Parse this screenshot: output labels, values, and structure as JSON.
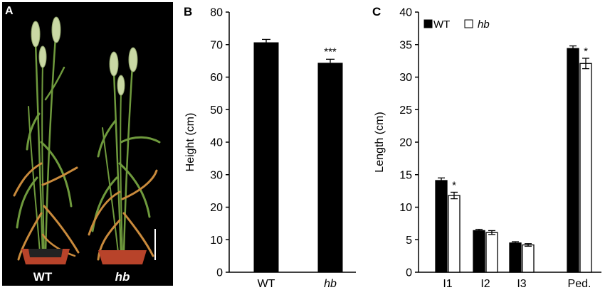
{
  "panels": {
    "a": {
      "letter": "A",
      "labels": [
        "WT",
        "hb"
      ],
      "colors": {
        "background": "#000000",
        "pot": "#b8432a",
        "stem": "#6f9a3d",
        "dry_leaf": "#c98a3c",
        "spike": "#c9d8a4"
      }
    },
    "b": {
      "letter": "B"
    },
    "c": {
      "letter": "C"
    }
  },
  "chart_data": [
    {
      "type": "bar",
      "panel": "B",
      "categories": [
        "WT",
        "hb"
      ],
      "values": [
        70.7,
        64.4
      ],
      "errors": [
        0.9,
        1.1
      ],
      "significance": [
        "",
        "***"
      ],
      "ylabel": "Height (cm)",
      "xlabel": "",
      "ylim": [
        0,
        80
      ],
      "yticks": [
        0,
        10,
        20,
        30,
        40,
        50,
        60,
        70,
        80
      ],
      "bar_color": "#000000",
      "grid": false
    },
    {
      "type": "bar",
      "panel": "C",
      "categories": [
        "I1",
        "I2",
        "I3",
        "Ped."
      ],
      "series": [
        {
          "name": "WT",
          "values": [
            14.1,
            6.4,
            4.5,
            34.4
          ],
          "errors": [
            0.4,
            0.2,
            0.2,
            0.4
          ],
          "fill": "#000000"
        },
        {
          "name": "hb",
          "values": [
            11.8,
            6.1,
            4.2,
            32.1
          ],
          "errors": [
            0.5,
            0.3,
            0.2,
            0.8
          ],
          "fill": "#ffffff"
        }
      ],
      "significance": [
        "*",
        "",
        "",
        "*"
      ],
      "ylabel": "Length (cm)",
      "xlabel": "",
      "ylim": [
        0,
        40
      ],
      "yticks": [
        0,
        5,
        10,
        15,
        20,
        25,
        30,
        35,
        40
      ],
      "legend": "top-left",
      "grid": false
    }
  ]
}
